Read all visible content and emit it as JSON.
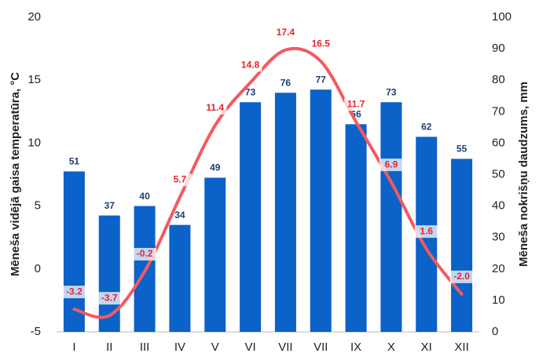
{
  "chart_data": {
    "type": "combo",
    "ylabel": "Mēneša vidējā gaisa temperatūra, °C",
    "y2label": "Mēneša nokrišņu daudzums, mm",
    "categories": [
      "I",
      "II",
      "III",
      "IV",
      "V",
      "VI",
      "VII",
      "VII",
      "IX",
      "X",
      "XI",
      "XII"
    ],
    "series": [
      {
        "type": "bar",
        "axis": "y2",
        "color": "#0b62c8",
        "label_color": "#1f3f6e",
        "values": [
          51,
          37,
          40,
          34,
          49,
          73,
          76,
          77,
          66,
          73,
          62,
          55
        ]
      },
      {
        "type": "line",
        "axis": "y",
        "color": "#f25a5f",
        "label_color": "#e8242b",
        "values": [
          -3.2,
          -3.7,
          -0.2,
          5.7,
          11.4,
          14.8,
          17.4,
          16.5,
          11.7,
          6.9,
          1.6,
          -2.0
        ],
        "value_labels": [
          "-3.2",
          "-3.7",
          "-0.2",
          "5.7",
          "11.4",
          "14.8",
          "17.4",
          "16.5",
          "11.7",
          "6.9",
          "1.6",
          "-2.0"
        ]
      }
    ],
    "ylim": [
      -5,
      20
    ],
    "yticks": [
      -5,
      0,
      5,
      10,
      15,
      20
    ],
    "y2lim": [
      0,
      100
    ],
    "y2ticks": [
      0,
      10,
      20,
      30,
      40,
      50,
      60,
      70,
      80,
      90,
      100
    ],
    "grid": false
  }
}
